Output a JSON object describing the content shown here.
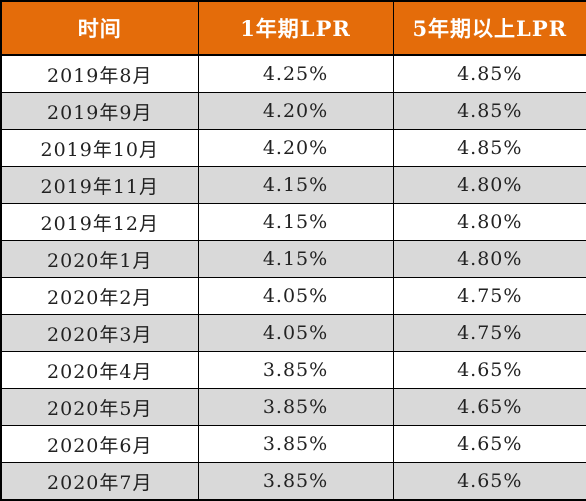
{
  "table": {
    "headers": [
      "时间",
      "1年期LPR",
      "5年期以上LPR"
    ],
    "rows": [
      [
        "2019年8月",
        "4.25%",
        "4.85%"
      ],
      [
        "2019年9月",
        "4.20%",
        "4.85%"
      ],
      [
        "2019年10月",
        "4.20%",
        "4.85%"
      ],
      [
        "2019年11月",
        "4.15%",
        "4.80%"
      ],
      [
        "2019年12月",
        "4.15%",
        "4.80%"
      ],
      [
        "2020年1月",
        "4.15%",
        "4.80%"
      ],
      [
        "2020年2月",
        "4.05%",
        "4.75%"
      ],
      [
        "2020年3月",
        "4.05%",
        "4.75%"
      ],
      [
        "2020年4月",
        "3.85%",
        "4.65%"
      ],
      [
        "2020年5月",
        "3.85%",
        "4.65%"
      ],
      [
        "2020年6月",
        "3.85%",
        "4.65%"
      ],
      [
        "2020年7月",
        "3.85%",
        "4.65%"
      ]
    ]
  },
  "colors": {
    "header_bg": "#E46C0A",
    "header_text": "#FFFFFF",
    "stripe_bg": "#D9D9D9",
    "row_bg": "#FFFFFF",
    "border": "#000000"
  }
}
